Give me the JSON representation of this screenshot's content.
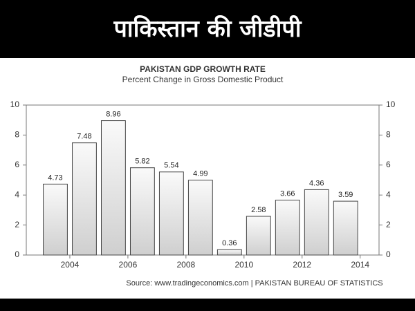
{
  "header": {
    "title": "पाकिस्तान की जीडीपी"
  },
  "chart_data": {
    "type": "bar",
    "title": "PAKISTAN GDP GROWTH RATE",
    "subtitle": "Percent Change in Gross Domestic Product",
    "source": "Source: www.tradingeconomics.com | PAKISTAN BUREAU OF STATISTICS",
    "x": [
      2003.5,
      2004.5,
      2005.5,
      2006.5,
      2007.5,
      2008.5,
      2009.5,
      2010.5,
      2011.5,
      2012.5,
      2013.5
    ],
    "values": [
      4.73,
      7.48,
      8.96,
      5.82,
      5.54,
      4.99,
      0.36,
      2.58,
      3.66,
      4.36,
      3.59
    ],
    "xlim": [
      2002.5,
      2014.65
    ],
    "xticks": [
      2004,
      2006,
      2008,
      2010,
      2012,
      2014
    ],
    "ylim": [
      0,
      10
    ],
    "yticks": [
      0,
      2,
      4,
      6,
      8,
      10
    ],
    "y2lim": [
      0,
      10
    ],
    "y2ticks": [
      0,
      2,
      4,
      6,
      8,
      10
    ],
    "color": "#e6e6e6"
  }
}
